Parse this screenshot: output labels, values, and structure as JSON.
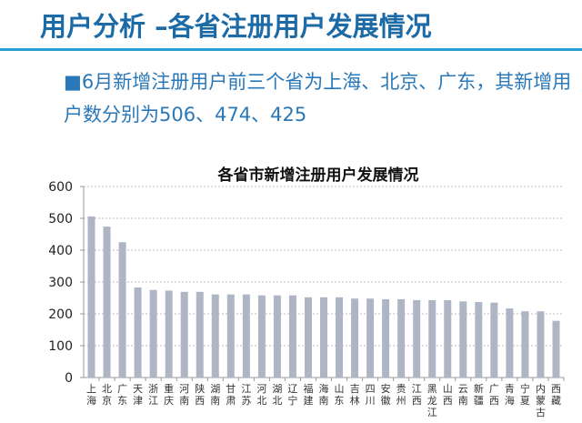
{
  "header": {
    "title": "用户分析 –各省注册用户发展情况"
  },
  "summary": {
    "text": "■6月新增注册用户前三个省为上海、北京、广东，其新增用户数分别为506、474、425"
  },
  "colors": {
    "title": "#1c6aa6",
    "rule": "#2a9fd6",
    "bar": "#aeb5c4"
  },
  "chart_data": {
    "type": "bar",
    "title": "各省市新增注册用户发展情况",
    "xlabel": "",
    "ylabel": "",
    "ylim": [
      0,
      600
    ],
    "yticks": [
      "0",
      "100",
      "200",
      "300",
      "400",
      "500",
      "600"
    ],
    "grid": true,
    "categories": [
      "上海",
      "北京",
      "广东",
      "天津",
      "浙江",
      "重庆",
      "河南",
      "陕西",
      "湖南",
      "甘肃",
      "江苏",
      "河北",
      "湖北",
      "辽宁",
      "福建",
      "海南",
      "山东",
      "吉林",
      "四川",
      "安徽",
      "贵州",
      "江西",
      "黑龙江",
      "山西",
      "云南",
      "新疆",
      "广西",
      "青海",
      "宁夏",
      "内蒙古",
      "西藏"
    ],
    "values": [
      506,
      474,
      425,
      283,
      275,
      273,
      269,
      269,
      261,
      261,
      261,
      258,
      258,
      258,
      252,
      252,
      252,
      248,
      248,
      246,
      246,
      243,
      243,
      243,
      239,
      237,
      235,
      217,
      208,
      208,
      178
    ]
  }
}
